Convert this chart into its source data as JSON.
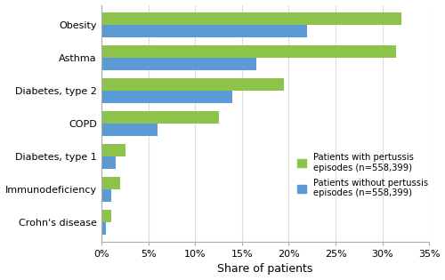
{
  "categories": [
    "Crohn's disease",
    "Immunodeficiency",
    "Diabetes, type 1",
    "COPD",
    "Diabetes, type 2",
    "Asthma",
    "Obesity"
  ],
  "green_values": [
    1.0,
    2.0,
    2.5,
    12.5,
    19.5,
    31.5,
    32.0
  ],
  "blue_values": [
    0.5,
    1.0,
    1.5,
    6.0,
    14.0,
    16.5,
    22.0
  ],
  "green_color": "#8dc34a",
  "blue_color": "#5b9bd5",
  "xlabel": "Share of patients",
  "xlim": [
    0,
    35
  ],
  "xticks": [
    0,
    5,
    10,
    15,
    20,
    25,
    30,
    35
  ],
  "xticklabels": [
    "0%",
    "5%",
    "10%",
    "15%",
    "20%",
    "25%",
    "30%",
    "35%"
  ],
  "legend_green": "Patients with pertussis\nepisodes (n=558,399)",
  "legend_blue": "Patients without pertussis\nepisodes (n=558,399)",
  "bar_height": 0.38,
  "figsize": [
    5.0,
    3.15
  ],
  "dpi": 100
}
